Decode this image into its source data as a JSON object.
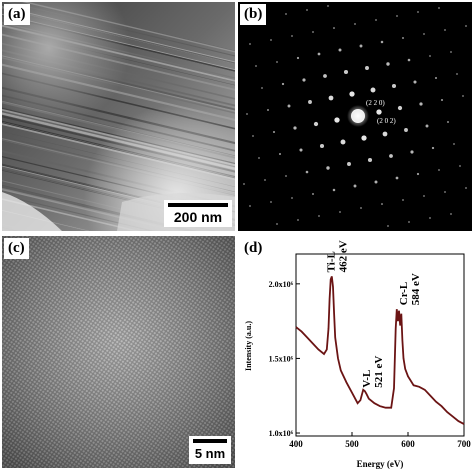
{
  "panels": {
    "a": {
      "label": "(a)",
      "scale_bar": "200 nm"
    },
    "b": {
      "label": "(b)",
      "spot_labels": [
        "(2 2 0)",
        "(2 0 2)"
      ]
    },
    "c": {
      "label": "(c)",
      "scale_bar": "5 nm"
    },
    "d": {
      "label": "(d)"
    }
  },
  "chart_data": {
    "type": "line",
    "xlabel": "Energy (eV)",
    "ylabel": "Intensity (a.u.)",
    "xlim": [
      400,
      700
    ],
    "ylim": [
      980000,
      2200000
    ],
    "xticks": [
      400,
      500,
      600,
      700
    ],
    "yticks": [
      {
        "value": 1000000,
        "label": "1.0x10⁶"
      },
      {
        "value": 1500000,
        "label": "1.5x10⁶"
      },
      {
        "value": 2000000,
        "label": "2.0x10⁶"
      }
    ],
    "series_color": "#6b1414",
    "x": [
      400,
      410,
      420,
      430,
      440,
      450,
      455,
      458,
      460,
      462,
      464,
      466,
      468,
      470,
      475,
      480,
      490,
      500,
      510,
      515,
      520,
      523,
      526,
      530,
      540,
      550,
      560,
      570,
      575,
      578,
      580,
      582,
      584,
      586,
      588,
      590,
      592,
      595,
      600,
      610,
      620,
      630,
      640,
      650,
      660,
      670,
      680,
      690,
      700
    ],
    "y": [
      1710000,
      1680000,
      1640000,
      1600000,
      1560000,
      1530000,
      1560000,
      1700000,
      1900000,
      2030000,
      2050000,
      1980000,
      1800000,
      1640000,
      1500000,
      1420000,
      1340000,
      1270000,
      1200000,
      1220000,
      1290000,
      1280000,
      1260000,
      1230000,
      1200000,
      1180000,
      1170000,
      1170000,
      1300000,
      1700000,
      1830000,
      1750000,
      1820000,
      1720000,
      1800000,
      1620000,
      1500000,
      1430000,
      1380000,
      1320000,
      1310000,
      1290000,
      1250000,
      1210000,
      1180000,
      1140000,
      1110000,
      1080000,
      1060000
    ],
    "annotations": [
      {
        "line1": "Ti-L",
        "line2": "462 eV",
        "x": 462,
        "y": 2050000
      },
      {
        "line1": "V-L",
        "line2": "521 eV",
        "x": 521,
        "y": 1290000
      },
      {
        "line1": "Cr-L",
        "line2": "584 eV",
        "x": 584,
        "y": 1830000
      }
    ]
  }
}
